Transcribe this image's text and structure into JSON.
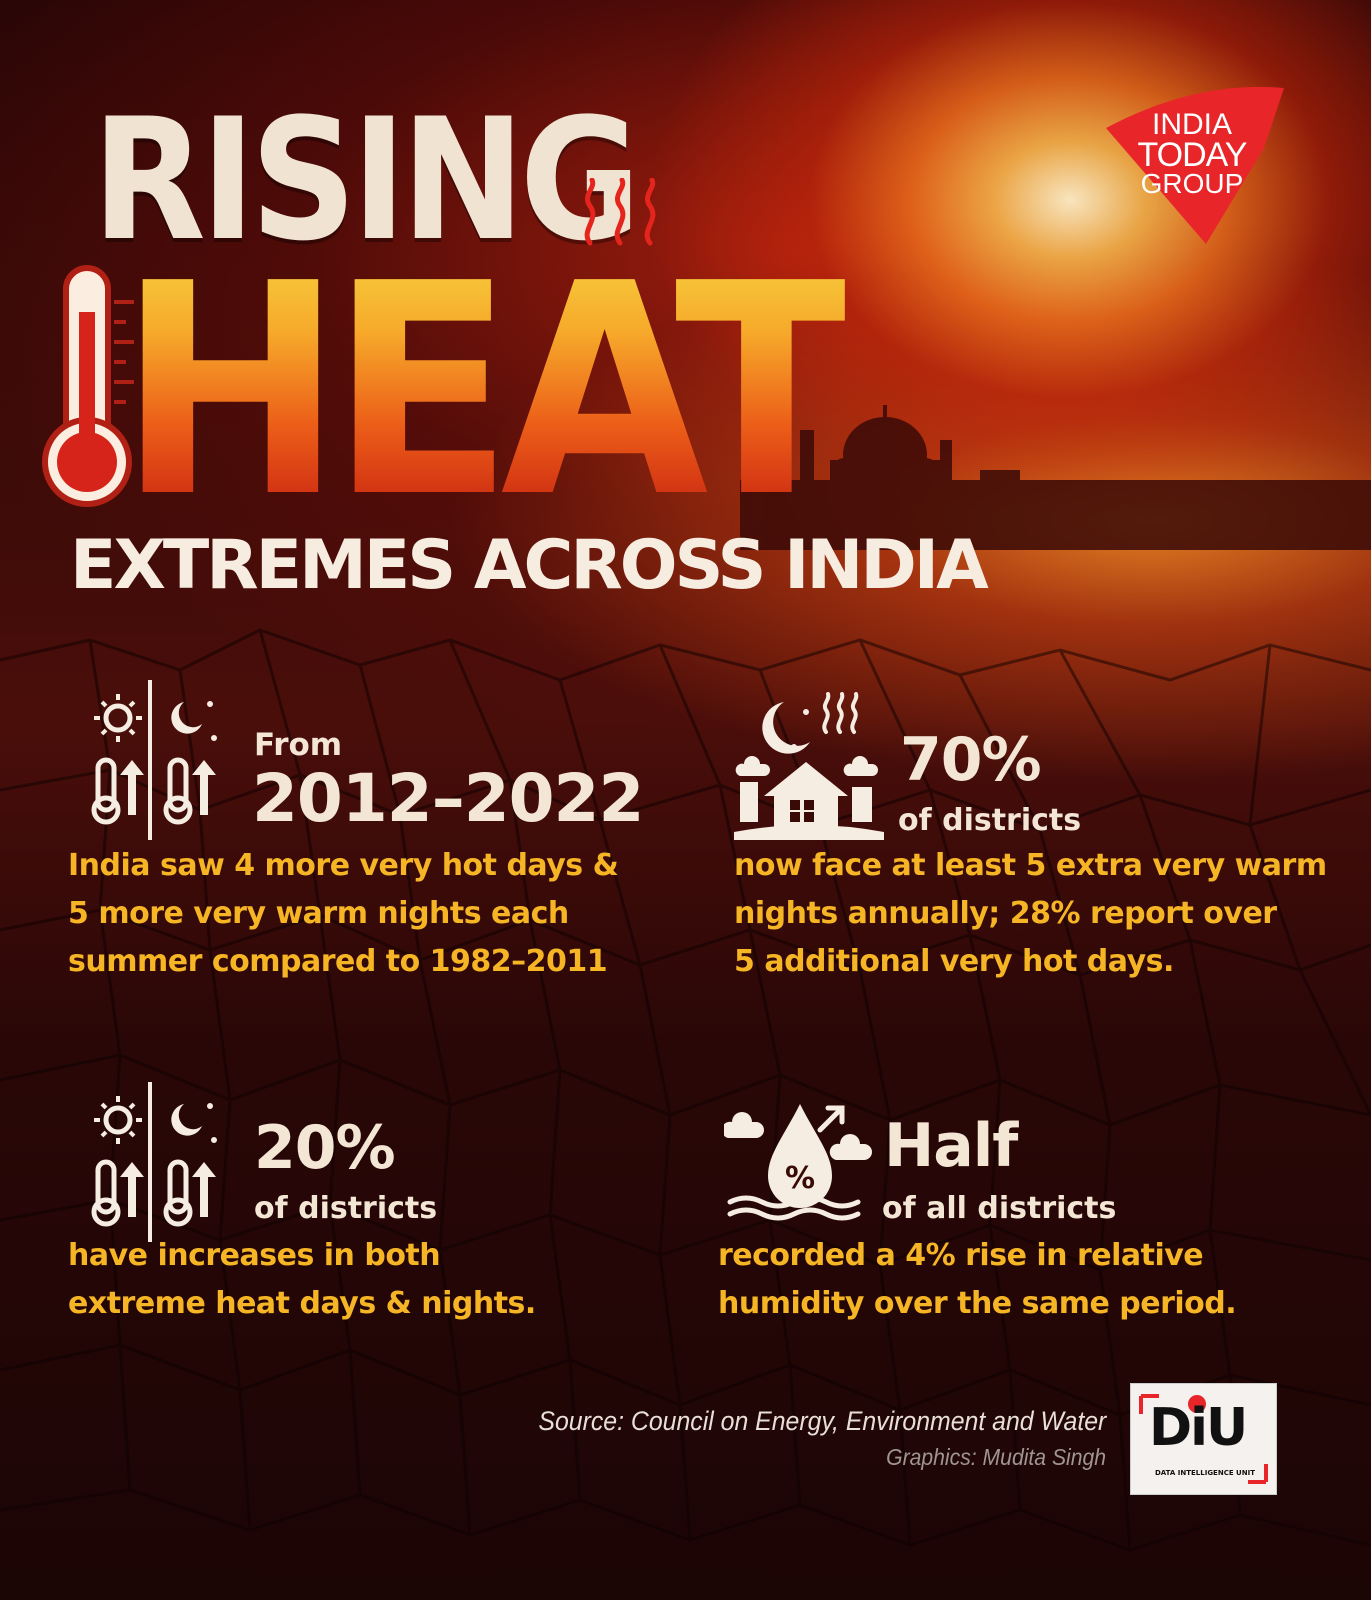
{
  "header": {
    "title_line1": "RISING",
    "title_line2": "HEAT",
    "subtitle": "EXTREMES ACROSS INDIA"
  },
  "brand": {
    "publisher_line1": "INDIA",
    "publisher_line2": "TODAY",
    "publisher_line3": "GROUP",
    "unit_word": "DiU",
    "unit_name": "DATA INTELLIGENCE UNIT",
    "publisher_color": "#e8262a"
  },
  "stats": [
    {
      "lead": "From",
      "headline": "2012–2022",
      "description": [
        "India saw 4 more very hot days &",
        "5 more very warm nights each",
        "summer compared to 1982–2011"
      ],
      "icon": "sun-moon-thermometer-icon"
    },
    {
      "headline": "70%",
      "sub": "of districts",
      "description": [
        "now face at least 5 extra very warm",
        "nights annually; 28% report over",
        "5 additional very hot days."
      ],
      "icon": "warm-night-house-icon"
    },
    {
      "headline": "20%",
      "sub": "of districts",
      "description": [
        "have increases in both",
        "extreme heat days & nights."
      ],
      "icon": "sun-moon-thermometer-icon"
    },
    {
      "headline": "Half",
      "sub": "of all districts",
      "description": [
        "recorded a 4% rise in relative",
        "humidity over the same period."
      ],
      "icon": "humidity-drop-icon"
    }
  ],
  "footer": {
    "source": "Source: Council on Energy, Environment and Water",
    "credit": "Graphics: Mudita Singh"
  },
  "colors": {
    "accent_text": "#f5b524",
    "light_text": "#f4e6d4",
    "background": "#2a0606"
  }
}
